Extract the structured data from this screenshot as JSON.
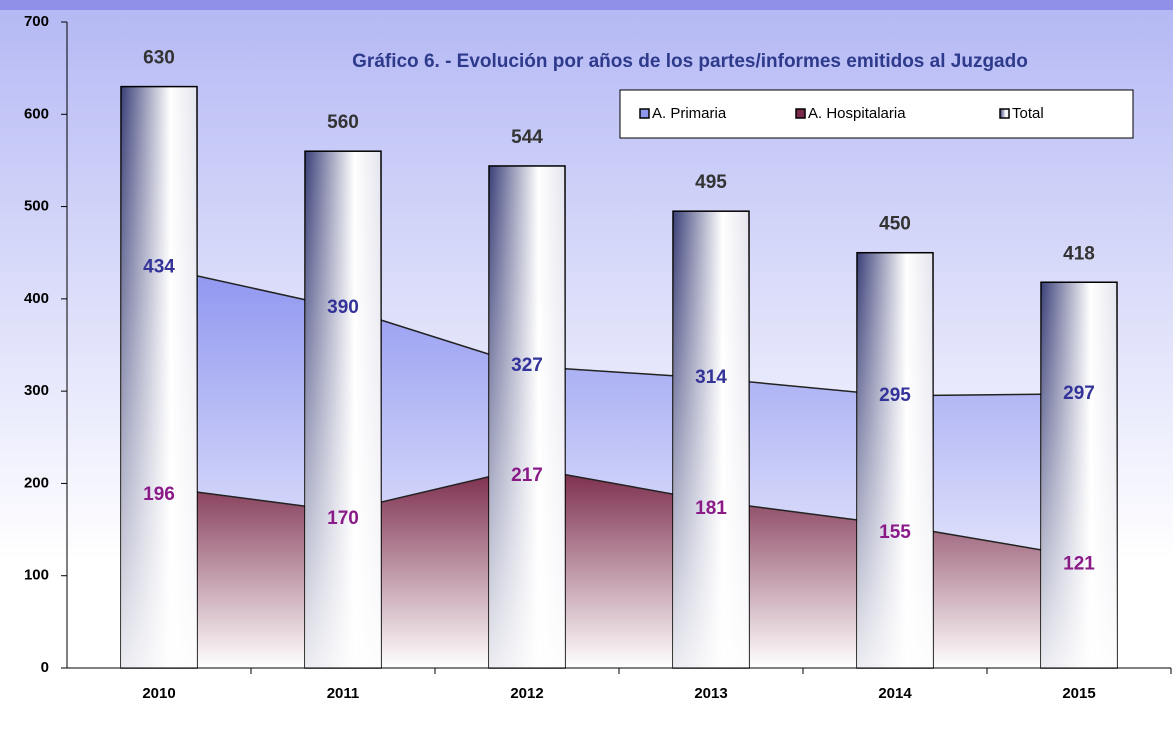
{
  "chart_data": {
    "type": "bar",
    "title": "Gráfico 6. - Evolución por años de los partes/informes emitidos al Juzgado",
    "categories": [
      "2010",
      "2011",
      "2012",
      "2013",
      "2014",
      "2015"
    ],
    "series": [
      {
        "name": "A. Primaria",
        "type": "area",
        "color": "#8f96f0",
        "label_color": "#333399",
        "values": [
          434,
          390,
          327,
          314,
          295,
          297
        ]
      },
      {
        "name": "A. Hospitalaria",
        "type": "area",
        "color": "#7a2a4a",
        "label_color": "#8b1a89",
        "values": [
          196,
          170,
          217,
          181,
          155,
          121
        ]
      },
      {
        "name": "Total",
        "type": "bar",
        "color": "#3a3f78",
        "label_color": "#333333",
        "values": [
          630,
          560,
          544,
          495,
          450,
          418
        ]
      }
    ],
    "ylim": [
      0,
      700
    ],
    "yticks": [
      0,
      100,
      200,
      300,
      400,
      500,
      600,
      700
    ]
  }
}
